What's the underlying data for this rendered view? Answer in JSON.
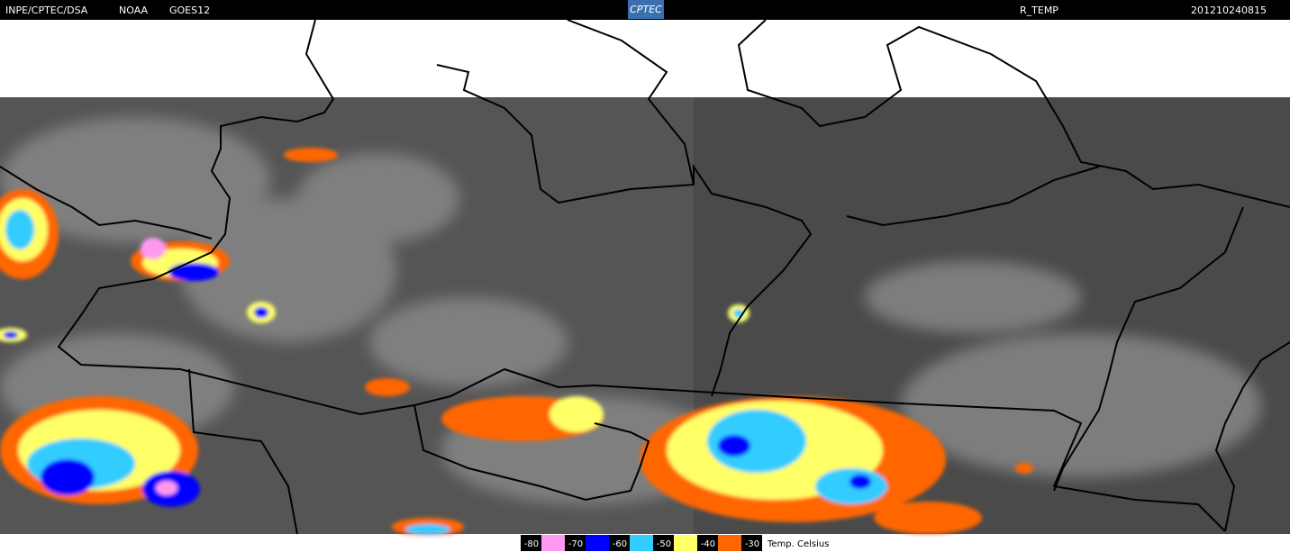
{
  "header": {
    "source": "INPE/CPTEC/DSA",
    "agency": "NOAA",
    "satellite": "GOES12",
    "logo": "CPTEC",
    "product": "R_TEMP",
    "timestamp": "201210240815"
  },
  "legend": {
    "items": [
      {
        "label": "-80",
        "color": "#ff99ee"
      },
      {
        "label": "-70",
        "color": "#0000ff"
      },
      {
        "label": "-60",
        "color": "#33ccff"
      },
      {
        "label": "-50",
        "color": "#ffff66"
      },
      {
        "label": "-40",
        "color": "#ff6600"
      },
      {
        "label": "-30",
        "color": null
      }
    ],
    "unit": "Temp. Celsius"
  }
}
